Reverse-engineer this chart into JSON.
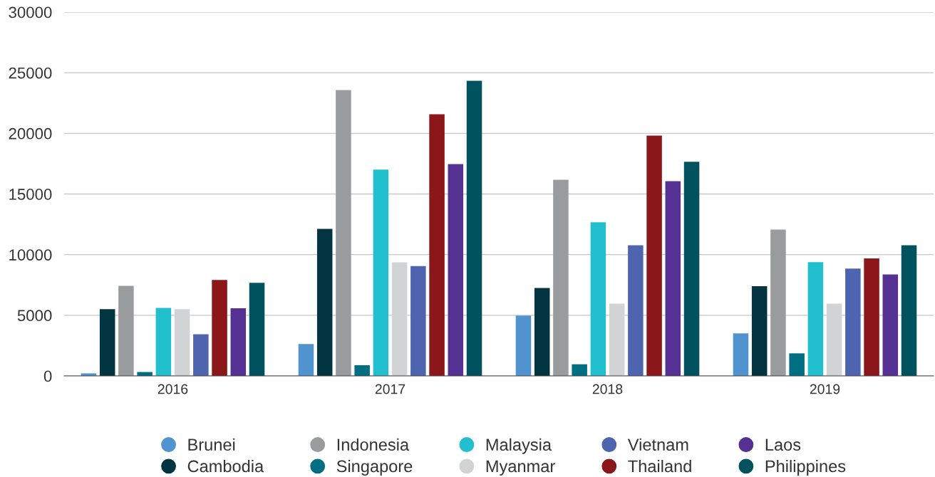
{
  "chart_data": {
    "type": "bar",
    "categories": [
      "2016",
      "2017",
      "2018",
      "2019"
    ],
    "ylim": [
      0,
      30000
    ],
    "yticks": [
      0,
      5000,
      10000,
      15000,
      20000,
      25000,
      30000
    ],
    "grid": "y",
    "legend": "bottom",
    "series": [
      {
        "name": "Brunei",
        "color": "#5193cf",
        "values": [
          210,
          2620,
          4980,
          3510
        ]
      },
      {
        "name": "Cambodia",
        "color": "#023541",
        "values": [
          5500,
          12130,
          7250,
          7390
        ]
      },
      {
        "name": "Indonesia",
        "color": "#9a9b9d",
        "values": [
          7420,
          23570,
          16170,
          12060
        ]
      },
      {
        "name": "Singapore",
        "color": "#006f81",
        "values": [
          320,
          880,
          960,
          1860
        ]
      },
      {
        "name": "Malaysia",
        "color": "#22bfcf",
        "values": [
          5610,
          17010,
          12660,
          9380
        ]
      },
      {
        "name": "Myanmar",
        "color": "#d2d3d5",
        "values": [
          5500,
          9370,
          5960,
          5960
        ]
      },
      {
        "name": "Vietnam",
        "color": "#4e64ae",
        "values": [
          3430,
          9050,
          10780,
          8850
        ]
      },
      {
        "name": "Thailand",
        "color": "#8b171a",
        "values": [
          7910,
          21580,
          19820,
          9680
        ]
      },
      {
        "name": "Laos",
        "color": "#553193",
        "values": [
          5570,
          17470,
          16060,
          8370
        ]
      },
      {
        "name": "Philippines",
        "color": "#01525f",
        "values": [
          7680,
          24340,
          17660,
          10780
        ]
      }
    ]
  }
}
